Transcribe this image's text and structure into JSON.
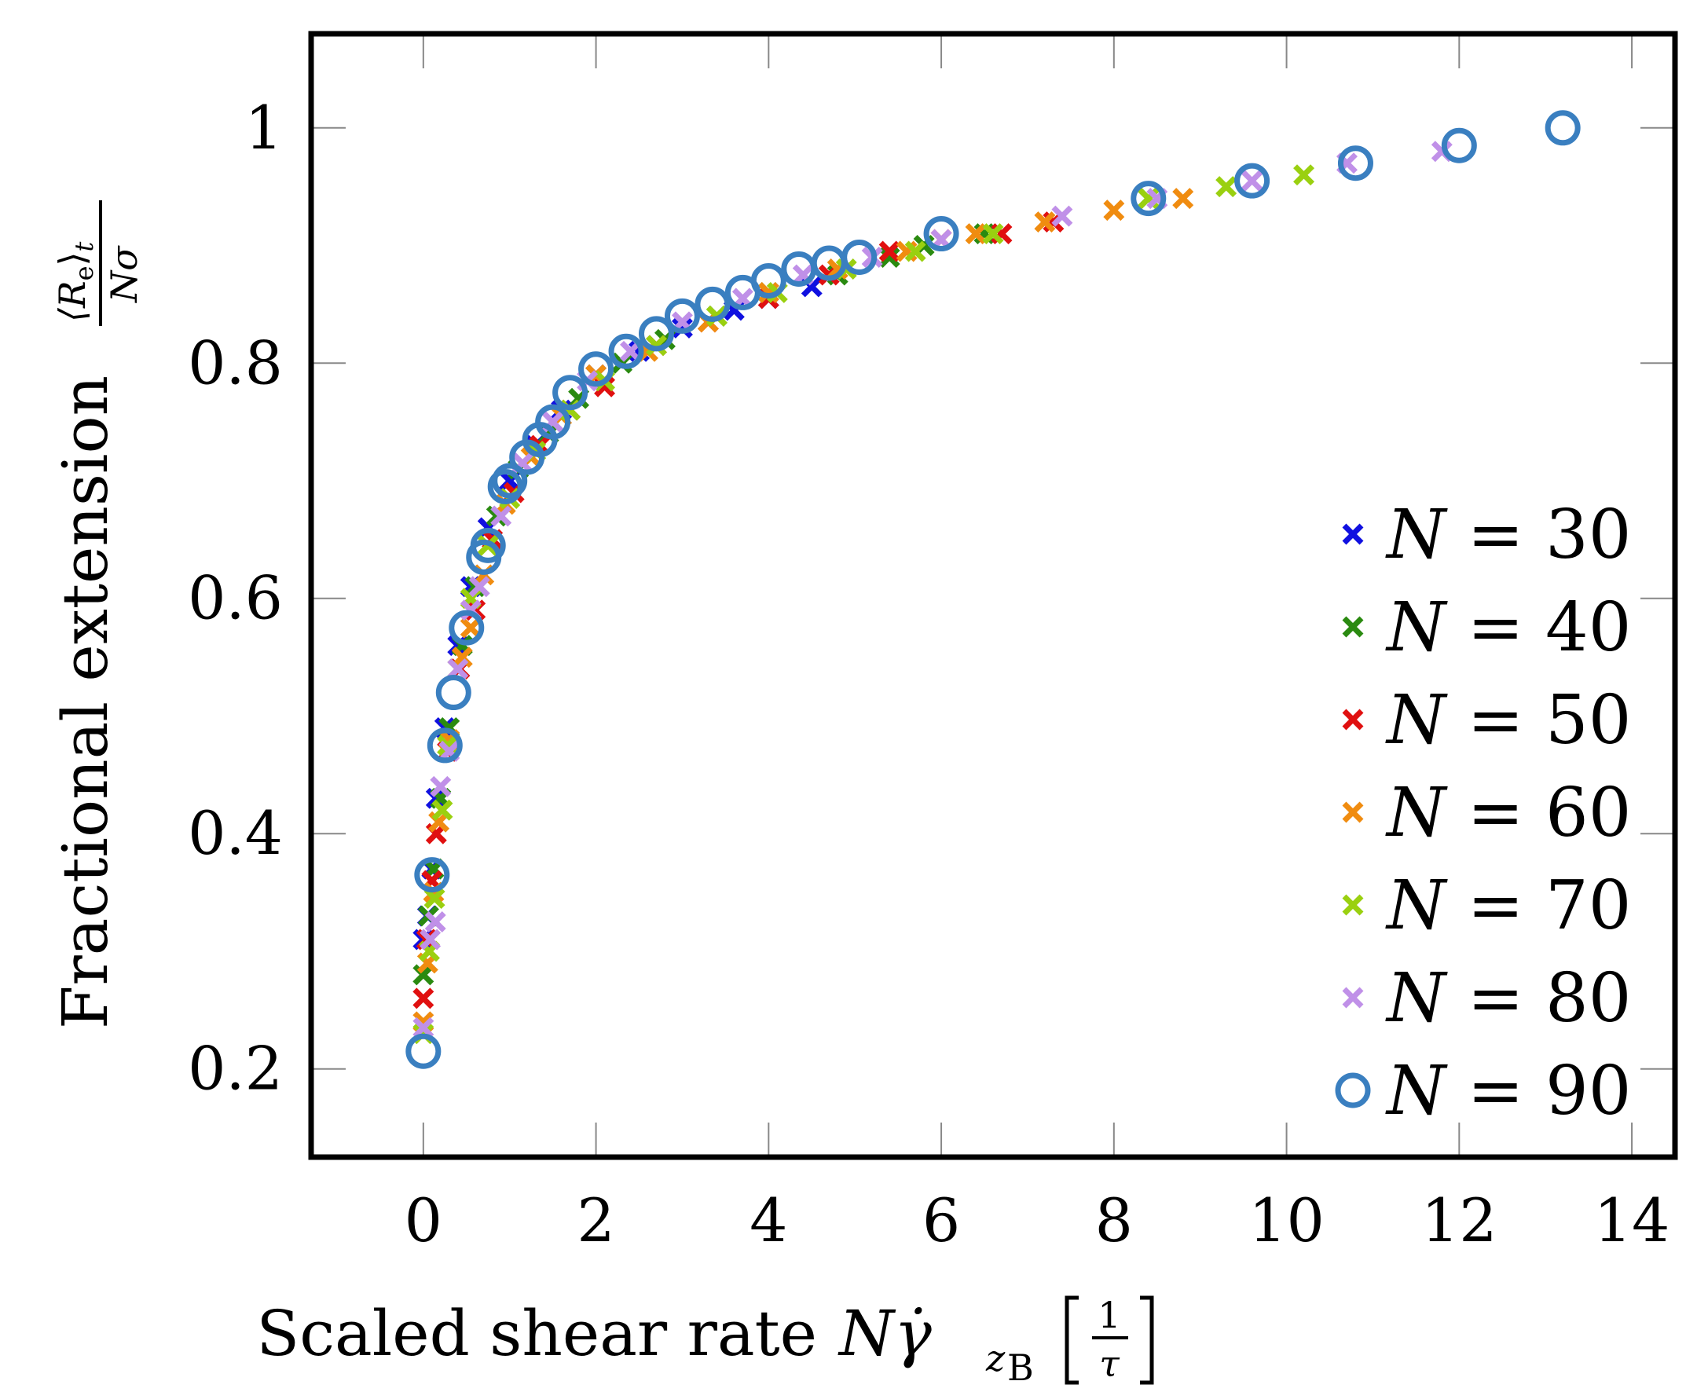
{
  "chart_data": {
    "type": "scatter",
    "title": "",
    "xlabel": "Scaled shear rate Nγ̇_zB [1/τ]",
    "xlabel_text": "Scaled shear rate",
    "xlabel_math": "Nγ̇",
    "xlabel_sub": "z",
    "xlabel_subsub": "B",
    "xlabel_frac_num": "1",
    "xlabel_frac_den": "τ",
    "ylabel": "Fractional extension ⟨Re⟩t / Nσ",
    "ylabel_text": "Fractional extension",
    "ylabel_frac_num": "⟨R",
    "ylabel_frac_num_sub": "e",
    "ylabel_frac_num_end": "⟩",
    "ylabel_frac_num_sub2": "t",
    "ylabel_frac_den": "Nσ",
    "xlim": [
      -1.3,
      14.5
    ],
    "ylim": [
      0.125,
      1.08
    ],
    "xticks": [
      0,
      2,
      4,
      6,
      8,
      10,
      12,
      14
    ],
    "xtick_labels": [
      "0",
      "2",
      "4",
      "6",
      "8",
      "10",
      "12",
      "14"
    ],
    "yticks": [
      0.2,
      0.4,
      0.6,
      0.8,
      1.0
    ],
    "ytick_labels": [
      "0.2",
      "0.4",
      "0.6",
      "0.8",
      "1"
    ],
    "legend_position": "bottom-right",
    "series": [
      {
        "name": "N = 30",
        "label_var": "N",
        "label_rest": " = 30",
        "color": "#1010e0",
        "marker": "x",
        "points": [
          [
            0.0,
            0.31
          ],
          [
            0.05,
            0.33
          ],
          [
            0.1,
            0.37
          ],
          [
            0.15,
            0.43
          ],
          [
            0.25,
            0.49
          ],
          [
            0.4,
            0.56
          ],
          [
            0.55,
            0.61
          ],
          [
            0.75,
            0.66
          ],
          [
            1.0,
            0.7
          ],
          [
            1.3,
            0.73
          ],
          [
            1.6,
            0.76
          ],
          [
            2.0,
            0.79
          ],
          [
            2.5,
            0.81
          ],
          [
            3.0,
            0.83
          ],
          [
            3.6,
            0.845
          ],
          [
            4.0,
            0.855
          ],
          [
            4.5,
            0.865
          ]
        ]
      },
      {
        "name": "N = 40",
        "label_var": "N",
        "label_rest": " = 40",
        "color": "#2a8a10",
        "marker": "x",
        "points": [
          [
            0.0,
            0.28
          ],
          [
            0.06,
            0.33
          ],
          [
            0.12,
            0.37
          ],
          [
            0.2,
            0.43
          ],
          [
            0.3,
            0.49
          ],
          [
            0.45,
            0.56
          ],
          [
            0.6,
            0.61
          ],
          [
            0.85,
            0.67
          ],
          [
            1.1,
            0.71
          ],
          [
            1.45,
            0.74
          ],
          [
            1.8,
            0.77
          ],
          [
            2.3,
            0.8
          ],
          [
            2.8,
            0.82
          ],
          [
            3.4,
            0.84
          ],
          [
            4.0,
            0.86
          ],
          [
            4.8,
            0.875
          ],
          [
            5.4,
            0.89
          ],
          [
            5.8,
            0.9
          ],
          [
            6.5,
            0.91
          ],
          [
            8.4,
            0.94
          ]
        ]
      },
      {
        "name": "N = 50",
        "label_var": "N",
        "label_rest": " = 50",
        "color": "#e01010",
        "marker": "x",
        "points": [
          [
            0.0,
            0.26
          ],
          [
            0.04,
            0.31
          ],
          [
            0.1,
            0.36
          ],
          [
            0.15,
            0.4
          ],
          [
            0.28,
            0.47
          ],
          [
            0.42,
            0.54
          ],
          [
            0.6,
            0.59
          ],
          [
            0.8,
            0.65
          ],
          [
            1.05,
            0.69
          ],
          [
            1.35,
            0.73
          ],
          [
            1.7,
            0.76
          ],
          [
            2.1,
            0.78
          ],
          [
            2.7,
            0.815
          ],
          [
            3.3,
            0.835
          ],
          [
            4.0,
            0.855
          ],
          [
            4.7,
            0.875
          ],
          [
            5.4,
            0.895
          ],
          [
            6.0,
            0.905
          ],
          [
            6.7,
            0.91
          ],
          [
            7.3,
            0.92
          ]
        ]
      },
      {
        "name": "N = 60",
        "label_var": "N",
        "label_rest": " = 60",
        "color": "#f08c10",
        "marker": "x",
        "points": [
          [
            0.0,
            0.24
          ],
          [
            0.05,
            0.29
          ],
          [
            0.12,
            0.35
          ],
          [
            0.18,
            0.41
          ],
          [
            0.3,
            0.48
          ],
          [
            0.45,
            0.55
          ],
          [
            0.55,
            0.575
          ],
          [
            0.7,
            0.62
          ],
          [
            0.95,
            0.68
          ],
          [
            1.25,
            0.72
          ],
          [
            1.6,
            0.755
          ],
          [
            2.0,
            0.79
          ],
          [
            2.6,
            0.81
          ],
          [
            3.3,
            0.835
          ],
          [
            4.0,
            0.86
          ],
          [
            4.8,
            0.88
          ],
          [
            5.6,
            0.895
          ],
          [
            6.4,
            0.91
          ],
          [
            7.2,
            0.92
          ],
          [
            8.0,
            0.93
          ],
          [
            8.8,
            0.94
          ]
        ]
      },
      {
        "name": "N = 70",
        "label_var": "N",
        "label_rest": " = 70",
        "color": "#9ad010",
        "marker": "x",
        "points": [
          [
            0.0,
            0.23
          ],
          [
            0.07,
            0.3
          ],
          [
            0.13,
            0.345
          ],
          [
            0.22,
            0.42
          ],
          [
            0.28,
            0.475
          ],
          [
            0.4,
            0.54
          ],
          [
            0.55,
            0.6
          ],
          [
            0.75,
            0.645
          ],
          [
            1.0,
            0.685
          ],
          [
            1.3,
            0.725
          ],
          [
            1.7,
            0.76
          ],
          [
            2.1,
            0.785
          ],
          [
            2.7,
            0.815
          ],
          [
            3.4,
            0.84
          ],
          [
            4.1,
            0.86
          ],
          [
            4.9,
            0.88
          ],
          [
            5.7,
            0.895
          ],
          [
            6.6,
            0.91
          ],
          [
            8.4,
            0.94
          ],
          [
            9.3,
            0.95
          ],
          [
            10.2,
            0.96
          ]
        ]
      },
      {
        "name": "N = 80",
        "label_var": "N",
        "label_rest": " = 80",
        "color": "#c090e8",
        "marker": "x",
        "points": [
          [
            0.0,
            0.235
          ],
          [
            0.08,
            0.31
          ],
          [
            0.14,
            0.325
          ],
          [
            0.2,
            0.44
          ],
          [
            0.3,
            0.47
          ],
          [
            0.4,
            0.54
          ],
          [
            0.55,
            0.59
          ],
          [
            0.65,
            0.61
          ],
          [
            0.9,
            0.67
          ],
          [
            1.15,
            0.715
          ],
          [
            1.5,
            0.75
          ],
          [
            1.9,
            0.785
          ],
          [
            2.4,
            0.81
          ],
          [
            3.0,
            0.835
          ],
          [
            3.7,
            0.855
          ],
          [
            4.4,
            0.875
          ],
          [
            5.2,
            0.89
          ],
          [
            6.0,
            0.905
          ],
          [
            7.4,
            0.925
          ],
          [
            8.5,
            0.94
          ],
          [
            9.6,
            0.955
          ],
          [
            10.7,
            0.97
          ],
          [
            11.8,
            0.98
          ]
        ]
      },
      {
        "name": "N = 90",
        "label_var": "N",
        "label_rest": " = 90",
        "color": "#3a7fc0",
        "marker": "o",
        "points": [
          [
            0.0,
            0.215
          ],
          [
            0.1,
            0.365
          ],
          [
            0.25,
            0.475
          ],
          [
            0.35,
            0.52
          ],
          [
            0.5,
            0.575
          ],
          [
            0.7,
            0.635
          ],
          [
            0.75,
            0.645
          ],
          [
            0.95,
            0.695
          ],
          [
            1.0,
            0.7
          ],
          [
            1.2,
            0.72
          ],
          [
            1.35,
            0.735
          ],
          [
            1.5,
            0.75
          ],
          [
            1.7,
            0.775
          ],
          [
            2.0,
            0.795
          ],
          [
            2.35,
            0.81
          ],
          [
            2.7,
            0.825
          ],
          [
            3.0,
            0.84
          ],
          [
            3.35,
            0.85
          ],
          [
            3.7,
            0.86
          ],
          [
            4.0,
            0.87
          ],
          [
            4.35,
            0.88
          ],
          [
            4.7,
            0.885
          ],
          [
            5.05,
            0.89
          ],
          [
            6.0,
            0.91
          ],
          [
            8.4,
            0.94
          ],
          [
            9.6,
            0.955
          ],
          [
            10.8,
            0.97
          ],
          [
            12.0,
            0.985
          ],
          [
            13.2,
            1.0
          ]
        ]
      }
    ]
  }
}
